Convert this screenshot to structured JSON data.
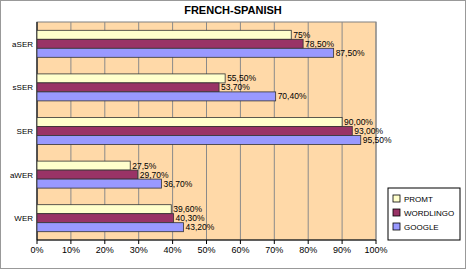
{
  "chart_data": {
    "type": "bar",
    "title": "FRENCH-SPANISH",
    "orientation": "horizontal",
    "categories": [
      "WER",
      "aWER",
      "SER",
      "sSER",
      "aSER"
    ],
    "series": [
      {
        "name": "PROMT",
        "color": "#FFFFCC",
        "values": [
          39.6,
          27.5,
          90.0,
          55.5,
          75
        ],
        "value_labels": [
          "39,60%",
          "27,5%",
          "90,00%",
          "55,50%",
          "75%"
        ]
      },
      {
        "name": "WORDLINGO",
        "color": "#993366",
        "values": [
          40.3,
          29.7,
          93.0,
          53.7,
          78.5
        ],
        "value_labels": [
          "40,30%",
          "29,70%",
          "93,00%",
          "53,70%",
          "78,50%"
        ]
      },
      {
        "name": "GOOGLE",
        "color": "#9999FF",
        "values": [
          43.2,
          36.7,
          95.5,
          70.4,
          87.5
        ],
        "value_labels": [
          "43,20%",
          "36,70%",
          "95,50%",
          "70,40%",
          "87,50%"
        ]
      }
    ],
    "xlim": [
      0,
      100
    ],
    "xticks": [
      {
        "value": 0,
        "label": "0%"
      },
      {
        "value": 10,
        "label": "10%"
      },
      {
        "value": 20,
        "label": "20%"
      },
      {
        "value": 30,
        "label": "30%"
      },
      {
        "value": 40,
        "label": "40%"
      },
      {
        "value": 50,
        "label": "50%"
      },
      {
        "value": 60,
        "label": "60%"
      },
      {
        "value": 70,
        "label": "70%"
      },
      {
        "value": 80,
        "label": "80%"
      },
      {
        "value": 90,
        "label": "90%"
      },
      {
        "value": 100,
        "label": "100%"
      }
    ],
    "grid": true,
    "legend": "right",
    "data_labels": true
  }
}
